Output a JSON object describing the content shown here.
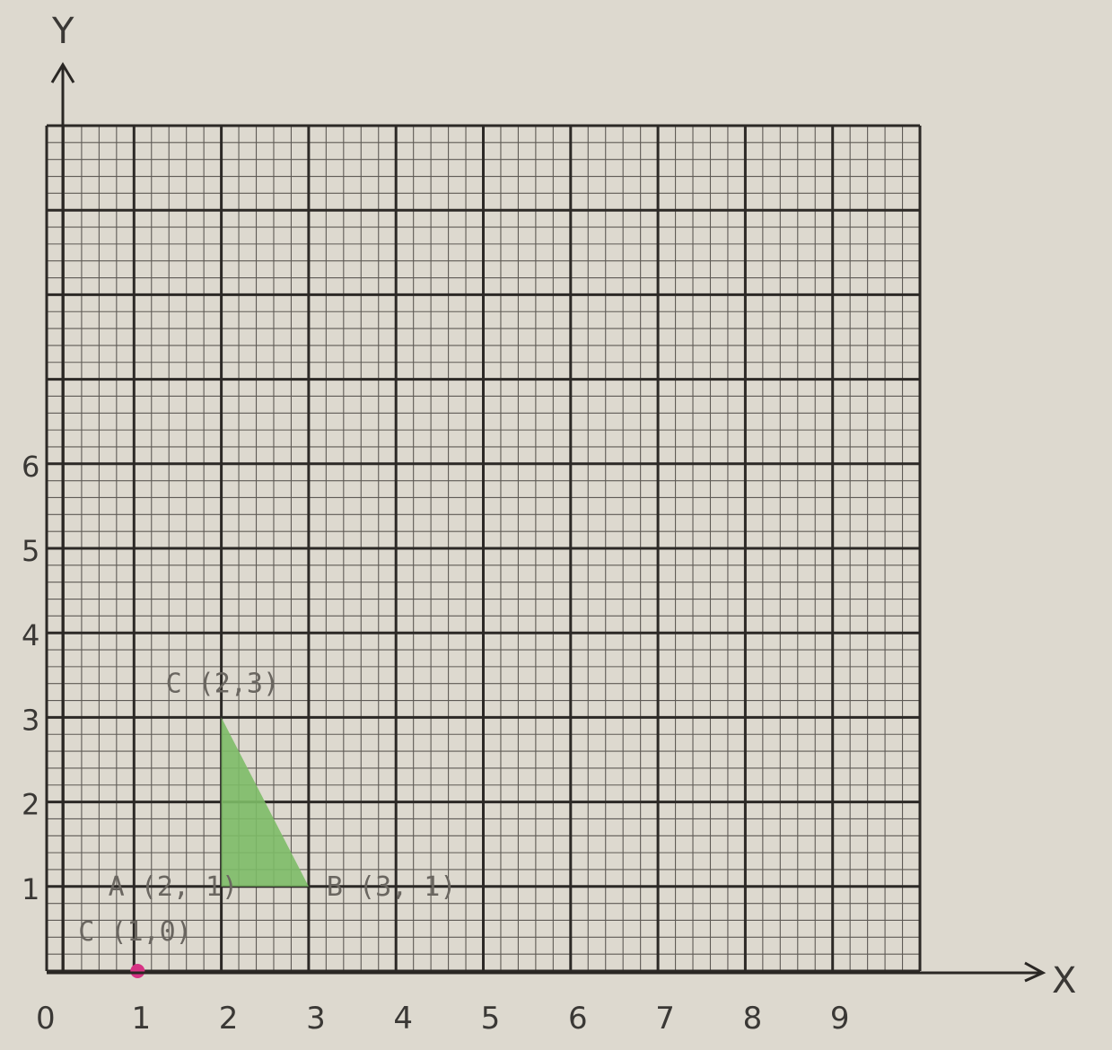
{
  "axes": {
    "x_label": "X",
    "y_label": "Y",
    "origin_label": "0",
    "x_ticks": [
      "1",
      "2",
      "3",
      "4",
      "5",
      "6",
      "7",
      "8",
      "9"
    ],
    "y_ticks": [
      "1",
      "2",
      "3",
      "4",
      "5",
      "6"
    ]
  },
  "grid": {
    "major_cols": 10,
    "major_rows": 10,
    "minor_per_major": 5
  },
  "triangle": {
    "fill": "#7dbb67",
    "vertices": [
      {
        "x": 2,
        "y": 1
      },
      {
        "x": 3,
        "y": 1
      },
      {
        "x": 2,
        "y": 3
      }
    ]
  },
  "points": [
    {
      "label": "A (2, 1)",
      "x": 2,
      "y": 1
    },
    {
      "label": "B (3, 1)",
      "x": 3,
      "y": 1
    },
    {
      "label": "C (2,3)",
      "x": 2,
      "y": 3
    },
    {
      "label": "C (1,0)",
      "x": 1,
      "y": 0
    }
  ],
  "marker": {
    "x": 1,
    "y": 0,
    "color": "#d63384"
  },
  "colors": {
    "paper": "#ddd9cf",
    "grid_major": "#2c2926",
    "grid_minor": "#5e5a55",
    "axis": "#2a2724"
  }
}
